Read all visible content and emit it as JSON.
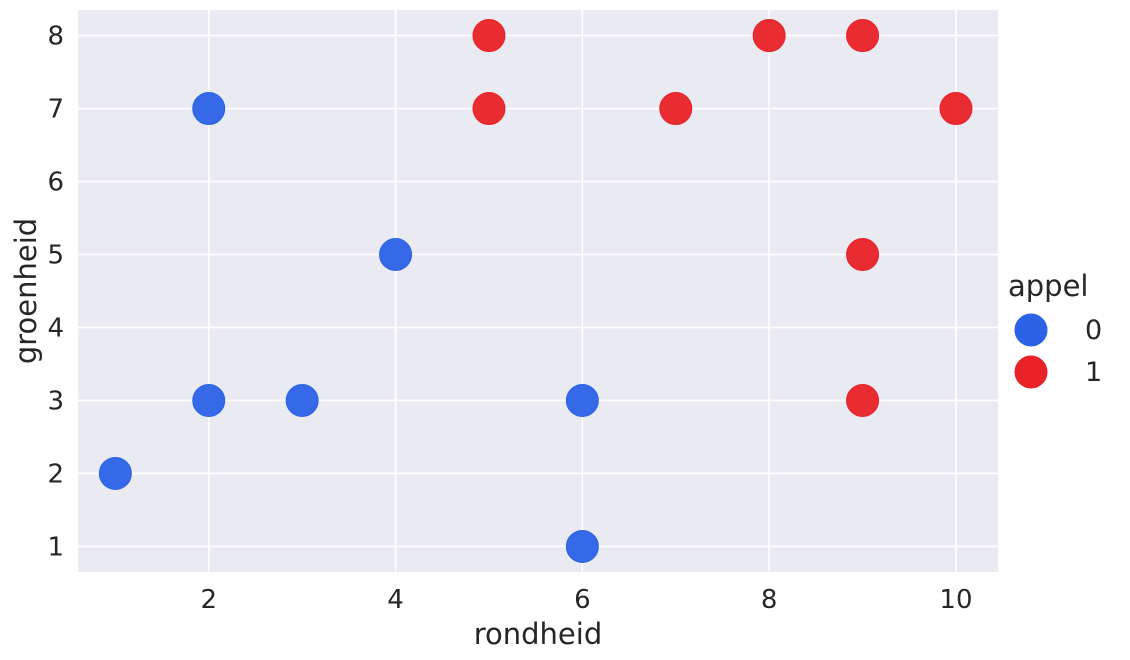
{
  "chart_data": {
    "type": "scatter",
    "title": "",
    "xlabel": "rondheid",
    "ylabel": "groenheid",
    "xlim": [
      0.6,
      10.45
    ],
    "ylim": [
      0.65,
      8.35
    ],
    "xticks": [
      2,
      4,
      6,
      8,
      10
    ],
    "yticks": [
      1,
      2,
      3,
      4,
      5,
      6,
      7,
      8
    ],
    "grid": true,
    "legend": {
      "title": "appel",
      "placement": "right"
    },
    "background_color": "#eaeaf2",
    "grid_color": "#ffffff",
    "series": [
      {
        "name": "0",
        "color": "#2b62e6",
        "points": [
          {
            "x": 1,
            "y": 2
          },
          {
            "x": 2,
            "y": 3
          },
          {
            "x": 2,
            "y": 7
          },
          {
            "x": 3,
            "y": 3
          },
          {
            "x": 4,
            "y": 5
          },
          {
            "x": 6,
            "y": 3
          },
          {
            "x": 6,
            "y": 1
          }
        ]
      },
      {
        "name": "1",
        "color": "#e92227",
        "points": [
          {
            "x": 5,
            "y": 8
          },
          {
            "x": 5,
            "y": 7
          },
          {
            "x": 7,
            "y": 7
          },
          {
            "x": 8,
            "y": 8
          },
          {
            "x": 9,
            "y": 8
          },
          {
            "x": 9,
            "y": 5
          },
          {
            "x": 9,
            "y": 3
          },
          {
            "x": 10,
            "y": 7
          }
        ]
      }
    ]
  }
}
